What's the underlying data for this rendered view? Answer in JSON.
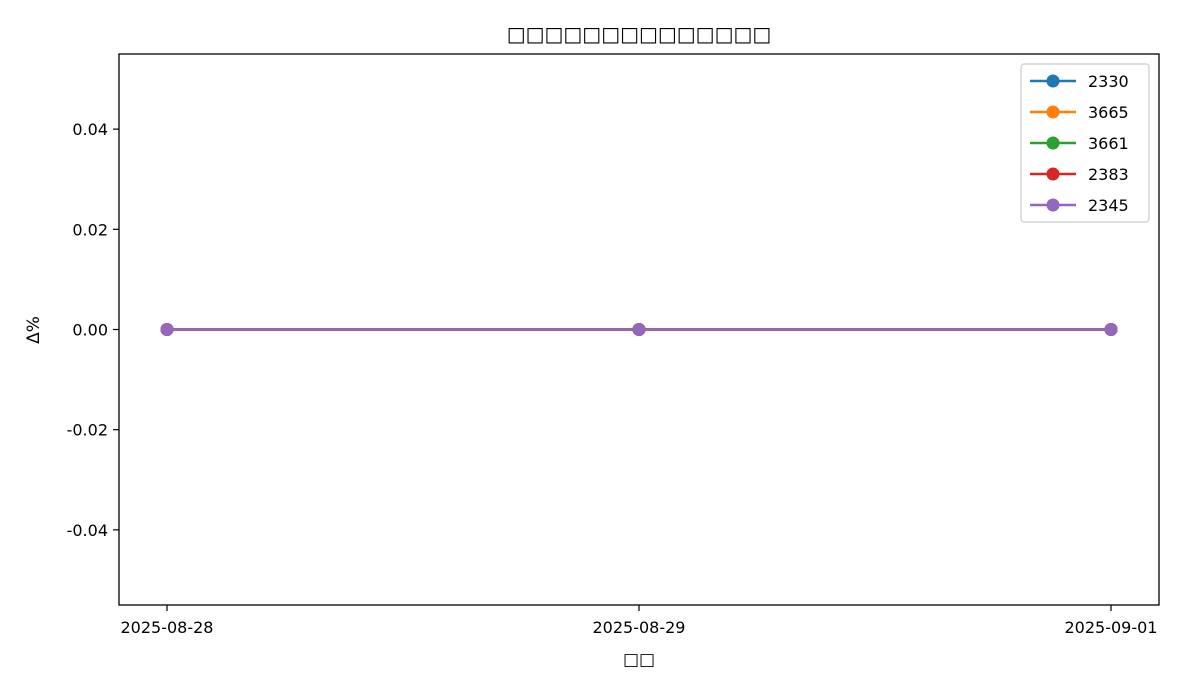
{
  "chart_data": {
    "type": "line",
    "title": "□□□□□□□□□□□□□□",
    "xlabel": "□□",
    "ylabel": "Δ%",
    "x": [
      "2025-08-28",
      "2025-08-29",
      "2025-09-01"
    ],
    "ylim": [
      -0.055,
      0.055
    ],
    "yticks": [
      0.04,
      0.02,
      0.0,
      -0.02,
      -0.04
    ],
    "ytick_labels": [
      "0.04",
      "0.02",
      "0.00",
      "-0.02",
      "-0.04"
    ],
    "grid": false,
    "legend_position": "top-right",
    "series": [
      {
        "name": "2330",
        "color": "#1f77b4",
        "values": [
          0,
          0,
          0
        ]
      },
      {
        "name": "3665",
        "color": "#ff7f0e",
        "values": [
          0,
          0,
          0
        ]
      },
      {
        "name": "3661",
        "color": "#2ca02c",
        "values": [
          0,
          0,
          0
        ]
      },
      {
        "name": "2383",
        "color": "#d62728",
        "values": [
          0,
          0,
          0
        ]
      },
      {
        "name": "2345",
        "color": "#9467bd",
        "values": [
          0,
          0,
          0
        ]
      }
    ]
  }
}
